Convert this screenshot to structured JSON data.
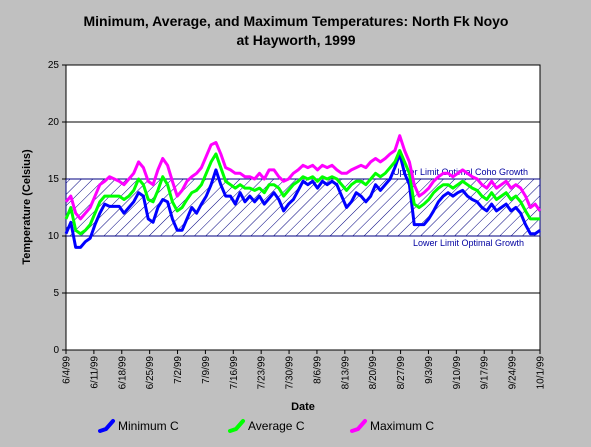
{
  "chart_data": {
    "type": "line",
    "title_line1": "Minimum, Average, and Maximum Temperatures:  North Fk Noyo",
    "title_line2": "at Hayworth, 1999",
    "xlabel": "Date",
    "ylabel": "Temperature (Celsius)",
    "ylim": [
      0,
      25
    ],
    "yticks": [
      "0",
      "5",
      "10",
      "15",
      "20",
      "25"
    ],
    "x_tick_labels": [
      "6/4/99",
      "6/11/99",
      "6/18/99",
      "6/25/99",
      "7/2/99",
      "7/9/99",
      "7/16/99",
      "7/23/99",
      "7/30/99",
      "8/6/99",
      "8/13/99",
      "8/20/99",
      "8/27/99",
      "9/3/99",
      "9/10/99",
      "9/17/99",
      "9/24/99",
      "10/1/99"
    ],
    "x_start_date": "6/4/99",
    "x_end_date": "10/1/99",
    "grid": "horizontal",
    "bands": [
      {
        "lower": 10,
        "upper": 15,
        "upper_label": "Upper Limit Optimal Coho Growth",
        "lower_label": "Lower Limit Optimal Growth",
        "color": "#000080"
      }
    ],
    "legend_position": "bottom",
    "series": [
      {
        "name": "Minimum C",
        "color": "#0000ff",
        "values": [
          10.2,
          11.2,
          9.0,
          9.0,
          9.5,
          9.8,
          11.0,
          12.0,
          12.8,
          12.6,
          12.6,
          12.6,
          12.0,
          12.5,
          13.0,
          13.8,
          13.5,
          11.5,
          11.2,
          12.5,
          13.2,
          13.0,
          11.5,
          10.5,
          10.5,
          11.5,
          12.5,
          12.0,
          12.8,
          13.5,
          14.5,
          15.8,
          14.5,
          13.5,
          13.5,
          12.8,
          13.8,
          13.0,
          13.5,
          13.0,
          13.5,
          12.8,
          13.3,
          13.8,
          13.2,
          12.2,
          12.8,
          13.2,
          14.0,
          14.8,
          14.5,
          14.8,
          14.2,
          14.8,
          14.5,
          14.8,
          14.5,
          13.5,
          12.5,
          13.0,
          13.8,
          13.5,
          13.0,
          13.5,
          14.5,
          14.0,
          14.5,
          15.0,
          16.0,
          17.2,
          15.5,
          14.5,
          11.0,
          11.0,
          11.0,
          11.5,
          12.2,
          13.0,
          13.5,
          13.8,
          13.5,
          13.8,
          14.0,
          13.5,
          13.2,
          13.0,
          12.5,
          12.2,
          12.8,
          12.2,
          12.5,
          12.8,
          12.2,
          12.5,
          12.0,
          11.0,
          10.2,
          10.2,
          10.5
        ]
      },
      {
        "name": "Average C",
        "color": "#00ff00",
        "values": [
          11.5,
          12.5,
          10.5,
          10.2,
          10.5,
          11.0,
          12.0,
          13.0,
          13.5,
          13.5,
          13.5,
          13.5,
          13.2,
          13.5,
          14.0,
          15.0,
          14.5,
          13.2,
          13.0,
          14.0,
          15.2,
          14.5,
          13.0,
          12.2,
          12.5,
          13.2,
          13.8,
          14.0,
          14.5,
          15.5,
          16.5,
          17.2,
          16.0,
          14.8,
          14.5,
          14.2,
          14.5,
          14.2,
          14.2,
          14.0,
          14.2,
          13.8,
          14.5,
          14.5,
          14.2,
          13.5,
          14.0,
          14.5,
          14.8,
          15.2,
          15.0,
          15.2,
          14.8,
          15.2,
          15.0,
          15.2,
          15.0,
          14.5,
          14.0,
          14.5,
          14.8,
          14.8,
          14.5,
          15.0,
          15.5,
          15.2,
          15.5,
          16.0,
          16.5,
          17.5,
          16.5,
          15.5,
          12.8,
          12.5,
          12.8,
          13.2,
          13.8,
          14.2,
          14.5,
          14.5,
          14.2,
          14.5,
          14.8,
          14.5,
          14.2,
          14.0,
          13.5,
          13.2,
          13.8,
          13.2,
          13.5,
          13.8,
          13.2,
          13.5,
          13.0,
          12.2,
          11.5,
          11.5,
          11.5
        ]
      },
      {
        "name": "Maximum C",
        "color": "#ff00ff",
        "values": [
          13.0,
          13.5,
          12.0,
          11.5,
          12.0,
          12.5,
          13.5,
          14.5,
          14.8,
          15.2,
          15.0,
          14.8,
          14.5,
          15.0,
          15.5,
          16.5,
          16.0,
          14.8,
          14.5,
          15.8,
          16.8,
          16.2,
          14.8,
          13.5,
          14.0,
          14.8,
          15.2,
          15.5,
          16.0,
          17.0,
          18.0,
          18.2,
          17.2,
          16.0,
          15.8,
          15.5,
          15.5,
          15.2,
          15.2,
          15.0,
          15.5,
          15.0,
          15.8,
          15.8,
          15.2,
          14.8,
          15.0,
          15.5,
          15.8,
          16.2,
          16.0,
          16.2,
          15.8,
          16.2,
          16.0,
          16.2,
          15.8,
          15.5,
          15.5,
          15.8,
          16.0,
          16.2,
          16.0,
          16.5,
          16.8,
          16.5,
          16.8,
          17.2,
          17.5,
          18.8,
          17.5,
          16.5,
          14.5,
          13.5,
          13.8,
          14.2,
          14.8,
          15.2,
          15.5,
          15.5,
          15.2,
          15.5,
          15.8,
          15.5,
          15.2,
          15.0,
          14.5,
          14.2,
          14.8,
          14.2,
          14.5,
          14.8,
          14.2,
          14.5,
          14.2,
          13.5,
          12.5,
          12.8,
          12.2
        ]
      }
    ]
  }
}
